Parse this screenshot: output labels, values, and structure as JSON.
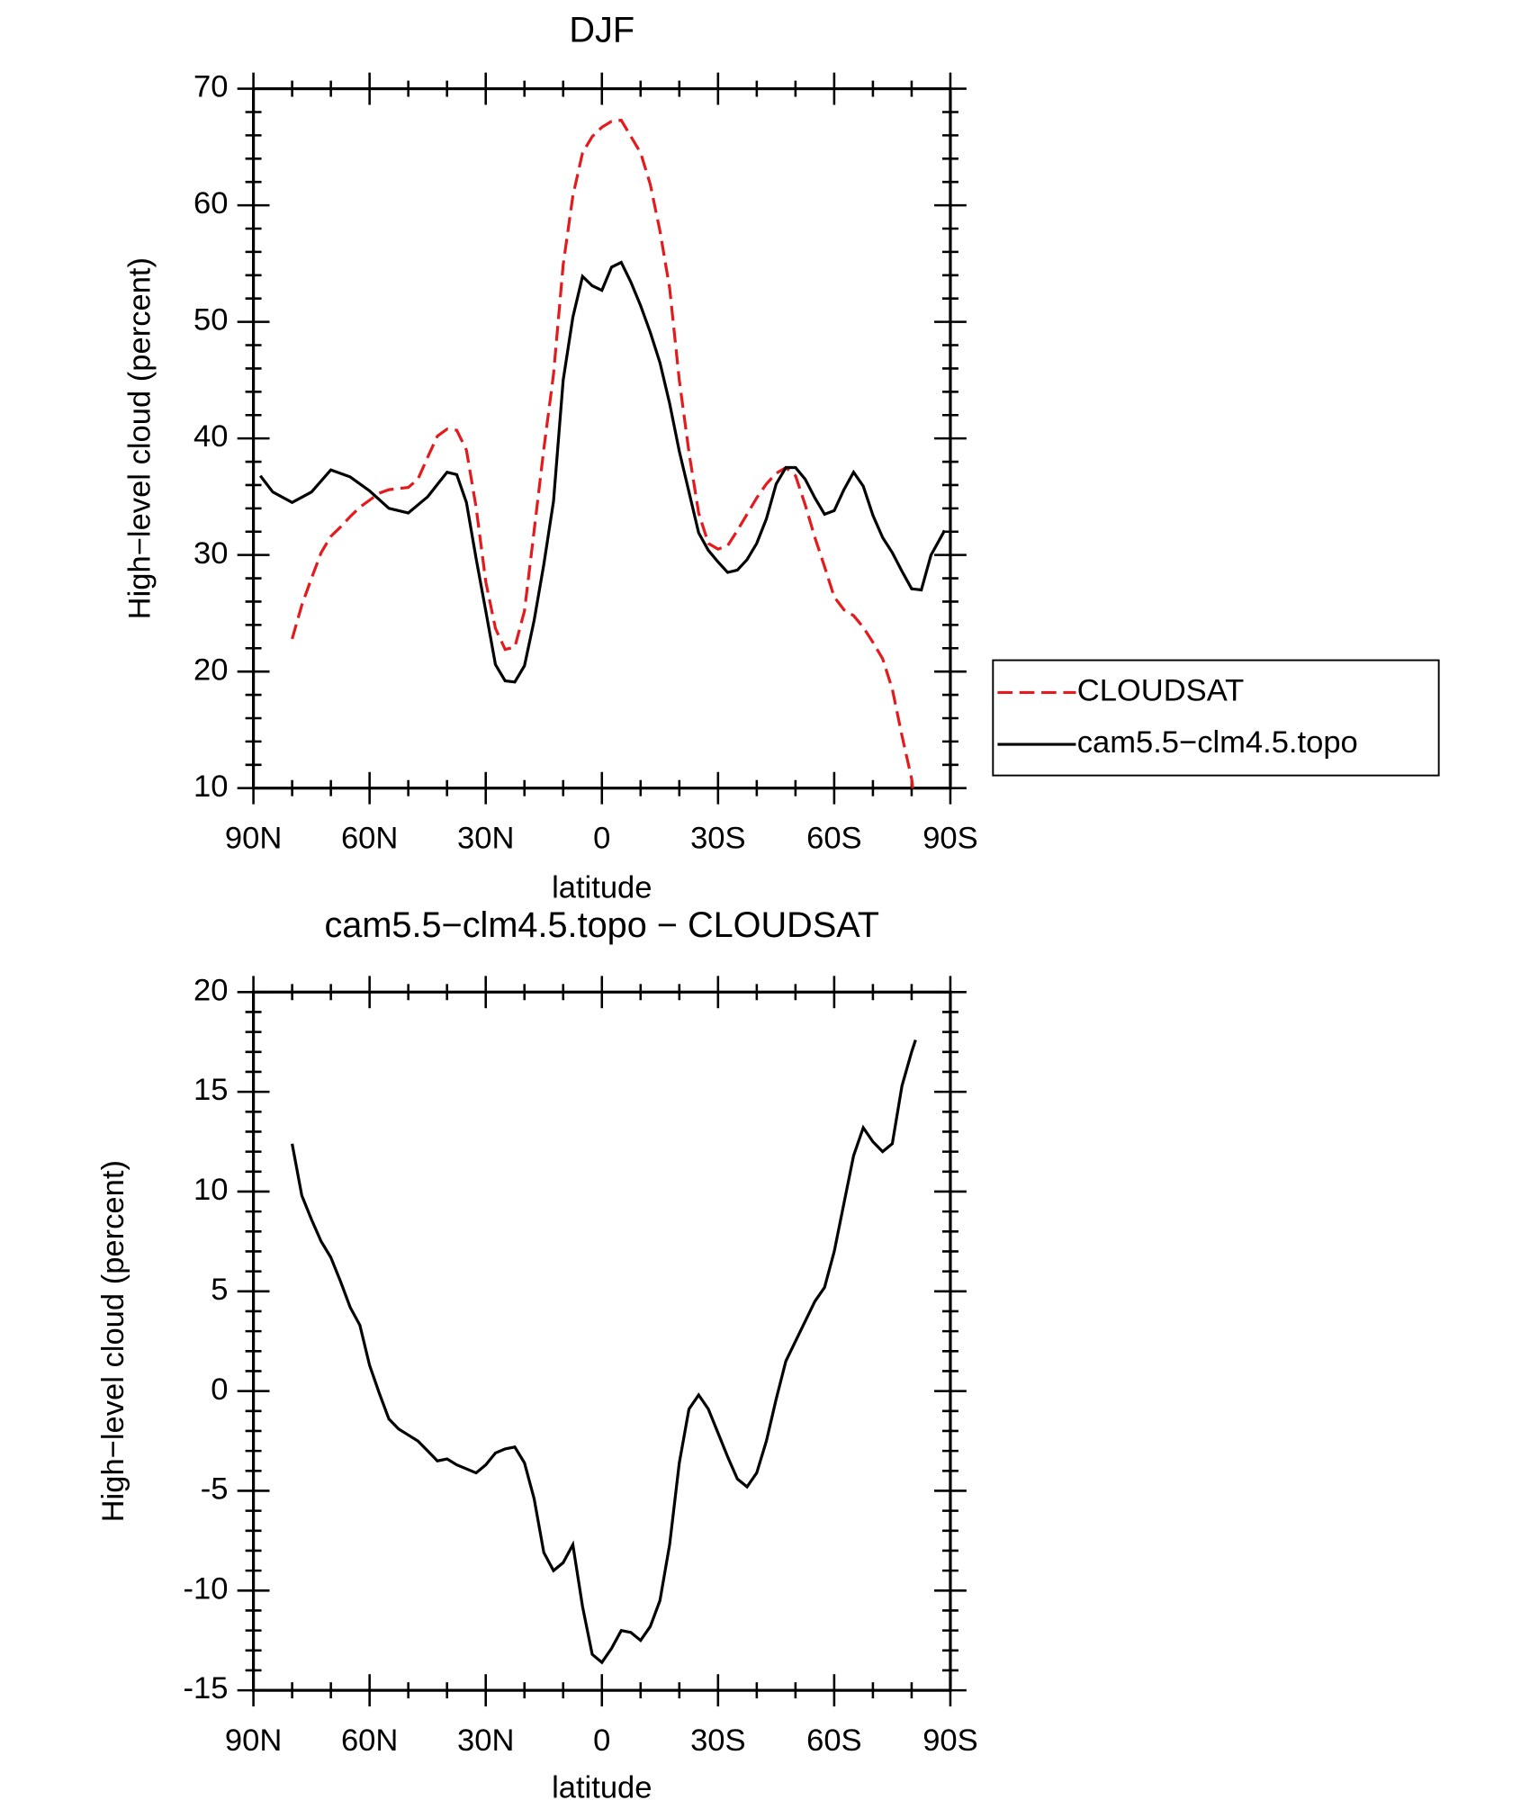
{
  "chart_data": [
    {
      "type": "line",
      "title": "DJF",
      "xlabel": "latitude",
      "ylabel": "High−level cloud (percent)",
      "xlim": [
        90,
        -90
      ],
      "xticks": [
        {
          "value": 90,
          "label": "90N"
        },
        {
          "value": 60,
          "label": "60N"
        },
        {
          "value": 30,
          "label": "30N"
        },
        0,
        {
          "value": -30,
          "label": "30S"
        },
        {
          "value": -60,
          "label": "60S"
        },
        {
          "value": -90,
          "label": "90S"
        }
      ],
      "ylim": [
        10,
        70
      ],
      "yticks": [
        10,
        20,
        30,
        40,
        50,
        60,
        70
      ],
      "x_minor_per_major": 3,
      "y_minor_per_major": 5,
      "legend": "right",
      "series": [
        {
          "name": "CLOUDSAT",
          "color": "#e41a1c",
          "dash": true,
          "x": [
            80,
            77.5,
            75,
            72.5,
            70,
            67.5,
            65,
            62.5,
            60,
            57.5,
            55,
            52.5,
            50,
            47.5,
            45,
            42.5,
            40,
            37.5,
            35,
            32.5,
            30,
            27.5,
            25,
            22.5,
            20,
            17.5,
            15,
            12.5,
            10,
            7.5,
            5,
            2.5,
            0,
            -2.5,
            -5,
            -7.5,
            -10,
            -12.5,
            -15,
            -17.5,
            -20,
            -22.5,
            -25,
            -27.5,
            -30,
            -32.5,
            -35,
            -37.5,
            -40,
            -42.5,
            -45,
            -47.5,
            -50,
            -52.5,
            -55,
            -57.5,
            -60,
            -62.5,
            -65,
            -67.5,
            -70,
            -72.5,
            -75,
            -77.5,
            -80,
            -80.3
          ],
          "values": [
            22.8,
            25.7,
            28.0,
            30.2,
            31.6,
            32.4,
            33.3,
            34.1,
            34.7,
            35.3,
            35.6,
            35.7,
            35.8,
            36.5,
            38.4,
            40.2,
            40.8,
            40.7,
            39.0,
            34.1,
            27.7,
            23.7,
            21.9,
            22.1,
            25.2,
            32.1,
            39.1,
            45.5,
            54.9,
            60.8,
            64.5,
            65.9,
            66.7,
            67.2,
            67.3,
            65.9,
            64.5,
            61.8,
            57.8,
            52.9,
            45.0,
            38.8,
            33.6,
            31.0,
            30.5,
            30.8,
            32.1,
            33.5,
            34.9,
            36.1,
            37.0,
            37.5,
            36.8,
            34.3,
            31.5,
            29.0,
            26.4,
            25.3,
            24.8,
            23.8,
            22.5,
            21.1,
            18.5,
            14.5,
            10.8,
            10.0
          ]
        },
        {
          "name": "cam5.5−clm4.5.topo",
          "color": "#000000",
          "dash": false,
          "x": [
            88.2,
            85,
            80,
            75,
            70,
            65,
            60,
            55,
            50,
            45,
            40,
            37.5,
            35,
            32.5,
            30,
            27.5,
            25,
            22.5,
            20,
            17.5,
            15,
            12.5,
            10,
            7.5,
            5,
            2.5,
            0,
            -2.5,
            -5,
            -7.5,
            -10,
            -12.5,
            -15,
            -17.5,
            -20,
            -22.5,
            -25,
            -27.5,
            -30,
            -32.5,
            -35,
            -37.5,
            -40,
            -42.5,
            -45,
            -47.5,
            -50,
            -52.5,
            -55,
            -57.5,
            -60,
            -62.5,
            -65,
            -67.5,
            -70,
            -72.5,
            -75,
            -77.5,
            -80,
            -82.5,
            -85,
            -88.5
          ],
          "values": [
            36.8,
            35.4,
            34.5,
            35.4,
            37.3,
            36.7,
            35.5,
            34.0,
            33.6,
            35.0,
            37.1,
            36.9,
            34.5,
            29.7,
            25.2,
            20.6,
            19.2,
            19.1,
            20.5,
            24.4,
            29.2,
            34.6,
            45.0,
            50.4,
            53.9,
            53.1,
            52.7,
            54.7,
            55.1,
            53.4,
            51.4,
            49.1,
            46.5,
            43.0,
            38.9,
            35.4,
            31.9,
            30.4,
            29.4,
            28.5,
            28.7,
            29.6,
            31.0,
            33.1,
            36.1,
            37.5,
            37.5,
            36.5,
            34.9,
            33.5,
            33.8,
            35.6,
            37.1,
            35.9,
            33.4,
            31.5,
            30.2,
            28.6,
            27.1,
            27.0,
            30.0,
            32.1
          ]
        }
      ]
    },
    {
      "type": "line",
      "title": "cam5.5−clm4.5.topo − CLOUDSAT",
      "xlabel": "latitude",
      "ylabel": "High−level cloud (percent)",
      "xlim": [
        90,
        -90
      ],
      "xticks": [
        {
          "value": 90,
          "label": "90N"
        },
        {
          "value": 60,
          "label": "60N"
        },
        {
          "value": 30,
          "label": "30N"
        },
        0,
        {
          "value": -30,
          "label": "30S"
        },
        {
          "value": -60,
          "label": "60S"
        },
        {
          "value": -90,
          "label": "90S"
        }
      ],
      "ylim": [
        -15,
        20
      ],
      "yticks": [
        -15,
        -10,
        -5,
        0,
        5,
        10,
        15,
        20
      ],
      "x_minor_per_major": 3,
      "y_minor_per_major": 5,
      "series": [
        {
          "color": "#000000",
          "dash": false,
          "x": [
            80,
            77.5,
            75,
            72.5,
            70,
            67.5,
            65,
            62.5,
            60,
            57.5,
            55,
            52.5,
            50,
            47.5,
            45,
            42.5,
            40,
            37.5,
            35,
            32.5,
            30,
            27.5,
            25,
            22.5,
            20,
            17.5,
            15,
            12.5,
            10,
            7.5,
            5,
            2.5,
            0,
            -2.5,
            -5,
            -7.5,
            -10,
            -12.5,
            -15,
            -17.5,
            -20,
            -22.5,
            -25,
            -27.5,
            -30,
            -32.5,
            -35,
            -37.5,
            -40,
            -42.5,
            -45,
            -47.5,
            -50,
            -52.5,
            -55,
            -57.5,
            -60,
            -62.5,
            -65,
            -67.5,
            -70,
            -72.5,
            -75,
            -77.5,
            -80,
            -81
          ],
          "values": [
            12.4,
            9.8,
            8.6,
            7.5,
            6.7,
            5.5,
            4.2,
            3.3,
            1.3,
            -0.1,
            -1.4,
            -1.9,
            -2.2,
            -2.5,
            -3.0,
            -3.5,
            -3.4,
            -3.7,
            -3.9,
            -4.1,
            -3.7,
            -3.1,
            -2.9,
            -2.8,
            -3.6,
            -5.4,
            -8.1,
            -9.0,
            -8.6,
            -7.7,
            -10.8,
            -13.2,
            -13.6,
            -12.9,
            -12.0,
            -12.1,
            -12.5,
            -11.8,
            -10.5,
            -7.7,
            -3.6,
            -0.9,
            -0.2,
            -0.9,
            -2.1,
            -3.3,
            -4.4,
            -4.8,
            -4.1,
            -2.5,
            -0.4,
            1.5,
            2.5,
            3.5,
            4.5,
            5.2,
            7.0,
            9.4,
            11.8,
            13.2,
            12.5,
            12.0,
            12.4,
            15.3,
            17.0,
            17.6
          ]
        }
      ]
    }
  ]
}
